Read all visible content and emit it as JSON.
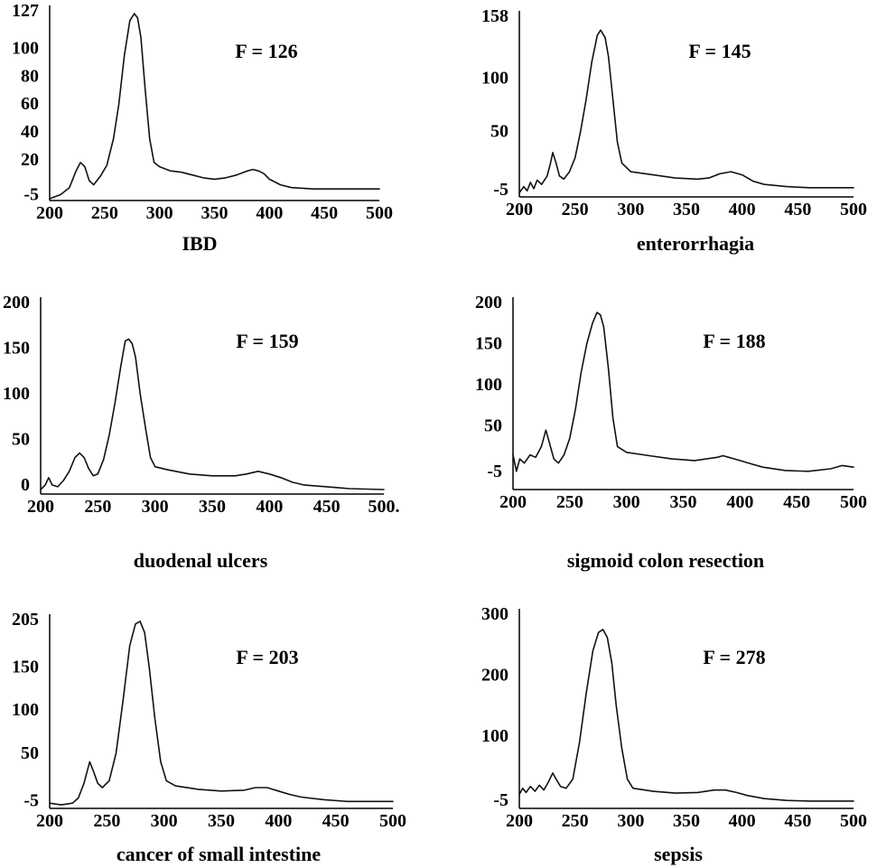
{
  "chart_data": [
    {
      "type": "line",
      "f_label": "F = 126",
      "caption": "IBD",
      "x_ticks": [
        "200",
        "250",
        "300",
        "350",
        "400",
        "450",
        "500"
      ],
      "y_ticks": [
        {
          "value": -5,
          "label": "-5"
        },
        {
          "value": 20,
          "label": "20"
        },
        {
          "value": 40,
          "label": "40"
        },
        {
          "value": 60,
          "label": "60"
        },
        {
          "value": 80,
          "label": "80"
        },
        {
          "value": 100,
          "label": "100"
        },
        {
          "value": 127,
          "label": "127"
        }
      ],
      "xlim": [
        200,
        500
      ],
      "ylim": [
        -8,
        127
      ],
      "series": [
        {
          "points": [
            [
              200,
              -8
            ],
            [
              210,
              -5
            ],
            [
              218,
              0
            ],
            [
              224,
              12
            ],
            [
              228,
              18
            ],
            [
              232,
              15
            ],
            [
              236,
              5
            ],
            [
              240,
              2
            ],
            [
              246,
              8
            ],
            [
              252,
              16
            ],
            [
              258,
              35
            ],
            [
              263,
              60
            ],
            [
              268,
              95
            ],
            [
              273,
              120
            ],
            [
              277,
              125
            ],
            [
              280,
              122
            ],
            [
              283,
              108
            ],
            [
              287,
              70
            ],
            [
              291,
              35
            ],
            [
              295,
              18
            ],
            [
              300,
              15
            ],
            [
              310,
              12
            ],
            [
              320,
              11
            ],
            [
              330,
              9
            ],
            [
              340,
              7
            ],
            [
              350,
              6
            ],
            [
              360,
              7
            ],
            [
              370,
              9
            ],
            [
              380,
              12
            ],
            [
              385,
              13
            ],
            [
              390,
              12
            ],
            [
              395,
              10
            ],
            [
              400,
              6
            ],
            [
              410,
              2
            ],
            [
              420,
              0
            ],
            [
              440,
              -1
            ],
            [
              460,
              -1
            ],
            [
              500,
              -1
            ]
          ]
        }
      ]
    },
    {
      "type": "line",
      "f_label": "F = 145",
      "caption": "enterorrhagia",
      "x_ticks": [
        "200",
        "250",
        "300",
        "350",
        "400",
        "450",
        "500"
      ],
      "y_ticks": [
        {
          "value": -5,
          "label": "-5"
        },
        {
          "value": 50,
          "label": "50"
        },
        {
          "value": 100,
          "label": "100"
        },
        {
          "value": 158,
          "label": "158"
        }
      ],
      "xlim": [
        200,
        500
      ],
      "ylim": [
        -10,
        158
      ],
      "series": [
        {
          "points": [
            [
              200,
              -8
            ],
            [
              204,
              -2
            ],
            [
              207,
              -6
            ],
            [
              210,
              2
            ],
            [
              213,
              -4
            ],
            [
              216,
              4
            ],
            [
              220,
              0
            ],
            [
              225,
              8
            ],
            [
              228,
              20
            ],
            [
              230,
              30
            ],
            [
              233,
              20
            ],
            [
              236,
              8
            ],
            [
              240,
              5
            ],
            [
              245,
              12
            ],
            [
              250,
              25
            ],
            [
              255,
              50
            ],
            [
              260,
              80
            ],
            [
              265,
              115
            ],
            [
              270,
              140
            ],
            [
              273,
              145
            ],
            [
              277,
              138
            ],
            [
              280,
              120
            ],
            [
              284,
              80
            ],
            [
              288,
              40
            ],
            [
              292,
              20
            ],
            [
              300,
              12
            ],
            [
              320,
              9
            ],
            [
              340,
              6
            ],
            [
              360,
              5
            ],
            [
              370,
              6
            ],
            [
              380,
              10
            ],
            [
              390,
              12
            ],
            [
              400,
              9
            ],
            [
              410,
              3
            ],
            [
              420,
              0
            ],
            [
              440,
              -2
            ],
            [
              460,
              -3
            ],
            [
              500,
              -3
            ]
          ]
        }
      ]
    },
    {
      "type": "line",
      "f_label": "F = 159",
      "caption": "duodenal ulcers",
      "x_ticks": [
        "200",
        "250",
        "300",
        "350",
        "400",
        "450",
        "500."
      ],
      "y_ticks": [
        {
          "value": 0,
          "label": "0"
        },
        {
          "value": 50,
          "label": "50"
        },
        {
          "value": 100,
          "label": "100"
        },
        {
          "value": 150,
          "label": "150"
        },
        {
          "value": 200,
          "label": "200"
        }
      ],
      "xlim": [
        200,
        500
      ],
      "ylim": [
        -8,
        200
      ],
      "series": [
        {
          "points": [
            [
              200,
              -5
            ],
            [
              204,
              0
            ],
            [
              207,
              8
            ],
            [
              210,
              0
            ],
            [
              215,
              -2
            ],
            [
              220,
              5
            ],
            [
              225,
              15
            ],
            [
              230,
              30
            ],
            [
              234,
              35
            ],
            [
              238,
              30
            ],
            [
              242,
              18
            ],
            [
              246,
              10
            ],
            [
              250,
              12
            ],
            [
              255,
              28
            ],
            [
              260,
              55
            ],
            [
              265,
              90
            ],
            [
              270,
              130
            ],
            [
              274,
              158
            ],
            [
              277,
              160
            ],
            [
              280,
              155
            ],
            [
              283,
              140
            ],
            [
              287,
              100
            ],
            [
              292,
              60
            ],
            [
              296,
              30
            ],
            [
              300,
              20
            ],
            [
              310,
              17
            ],
            [
              330,
              12
            ],
            [
              350,
              10
            ],
            [
              370,
              10
            ],
            [
              380,
              12
            ],
            [
              390,
              15
            ],
            [
              400,
              12
            ],
            [
              410,
              8
            ],
            [
              420,
              3
            ],
            [
              430,
              0
            ],
            [
              450,
              -2
            ],
            [
              470,
              -4
            ],
            [
              500,
              -5
            ]
          ]
        }
      ]
    },
    {
      "type": "line",
      "f_label": "F = 188",
      "caption": "sigmoid colon resection",
      "x_ticks": [
        "200",
        "250",
        "300",
        "350",
        "400",
        "450",
        "500"
      ],
      "y_ticks": [
        {
          "value": -5,
          "label": "-5"
        },
        {
          "value": 50,
          "label": "50"
        },
        {
          "value": 100,
          "label": "100"
        },
        {
          "value": 150,
          "label": "150"
        },
        {
          "value": 200,
          "label": "200"
        }
      ],
      "xlim": [
        200,
        500
      ],
      "ylim": [
        -25,
        200
      ],
      "series": [
        {
          "points": [
            [
              200,
              15
            ],
            [
              203,
              -5
            ],
            [
              206,
              10
            ],
            [
              210,
              5
            ],
            [
              215,
              15
            ],
            [
              220,
              12
            ],
            [
              225,
              25
            ],
            [
              229,
              45
            ],
            [
              232,
              30
            ],
            [
              236,
              10
            ],
            [
              240,
              5
            ],
            [
              245,
              15
            ],
            [
              250,
              35
            ],
            [
              255,
              70
            ],
            [
              260,
              115
            ],
            [
              265,
              150
            ],
            [
              270,
              175
            ],
            [
              274,
              188
            ],
            [
              277,
              185
            ],
            [
              280,
              170
            ],
            [
              284,
              120
            ],
            [
              288,
              60
            ],
            [
              292,
              25
            ],
            [
              300,
              18
            ],
            [
              320,
              14
            ],
            [
              340,
              10
            ],
            [
              360,
              8
            ],
            [
              380,
              12
            ],
            [
              385,
              14
            ],
            [
              390,
              12
            ],
            [
              400,
              8
            ],
            [
              410,
              4
            ],
            [
              420,
              0
            ],
            [
              440,
              -4
            ],
            [
              460,
              -5
            ],
            [
              480,
              -2
            ],
            [
              490,
              2
            ],
            [
              500,
              0
            ]
          ]
        }
      ]
    },
    {
      "type": "line",
      "f_label": "F = 203",
      "caption": "cancer of small intestine",
      "x_ticks": [
        "200",
        "250",
        "300",
        "350",
        "400",
        "450",
        "500"
      ],
      "y_ticks": [
        {
          "value": -5,
          "label": "-5"
        },
        {
          "value": 50,
          "label": "50"
        },
        {
          "value": 100,
          "label": "100"
        },
        {
          "value": 150,
          "label": "150"
        },
        {
          "value": 205,
          "label": "205"
        }
      ],
      "xlim": [
        200,
        500
      ],
      "ylim": [
        -12,
        205
      ],
      "series": [
        {
          "points": [
            [
              200,
              -8
            ],
            [
              210,
              -10
            ],
            [
              220,
              -8
            ],
            [
              225,
              -2
            ],
            [
              230,
              15
            ],
            [
              235,
              40
            ],
            [
              238,
              30
            ],
            [
              242,
              15
            ],
            [
              246,
              10
            ],
            [
              252,
              18
            ],
            [
              258,
              50
            ],
            [
              264,
              110
            ],
            [
              270,
              175
            ],
            [
              275,
              200
            ],
            [
              279,
              203
            ],
            [
              283,
              190
            ],
            [
              287,
              150
            ],
            [
              292,
              90
            ],
            [
              297,
              40
            ],
            [
              302,
              18
            ],
            [
              310,
              12
            ],
            [
              330,
              8
            ],
            [
              350,
              6
            ],
            [
              370,
              7
            ],
            [
              380,
              10
            ],
            [
              390,
              10
            ],
            [
              400,
              6
            ],
            [
              410,
              2
            ],
            [
              420,
              -1
            ],
            [
              440,
              -4
            ],
            [
              460,
              -6
            ],
            [
              500,
              -6
            ]
          ]
        }
      ]
    },
    {
      "type": "line",
      "f_label": "F = 278",
      "caption": "sepsis",
      "x_ticks": [
        "200",
        "250",
        "300",
        "350",
        "400",
        "450",
        "500"
      ],
      "y_ticks": [
        {
          "value": -5,
          "label": "-5"
        },
        {
          "value": 100,
          "label": "100"
        },
        {
          "value": 200,
          "label": "200"
        },
        {
          "value": 300,
          "label": "300"
        }
      ],
      "xlim": [
        200,
        500
      ],
      "ylim": [
        -15,
        300
      ],
      "series": [
        {
          "points": [
            [
              200,
              5
            ],
            [
              203,
              15
            ],
            [
              206,
              8
            ],
            [
              210,
              18
            ],
            [
              214,
              10
            ],
            [
              218,
              20
            ],
            [
              222,
              12
            ],
            [
              226,
              25
            ],
            [
              230,
              40
            ],
            [
              233,
              30
            ],
            [
              237,
              18
            ],
            [
              242,
              15
            ],
            [
              248,
              30
            ],
            [
              254,
              90
            ],
            [
              260,
              170
            ],
            [
              266,
              240
            ],
            [
              271,
              270
            ],
            [
              275,
              275
            ],
            [
              279,
              262
            ],
            [
              283,
              220
            ],
            [
              287,
              150
            ],
            [
              292,
              80
            ],
            [
              297,
              30
            ],
            [
              302,
              15
            ],
            [
              320,
              10
            ],
            [
              340,
              7
            ],
            [
              360,
              8
            ],
            [
              375,
              12
            ],
            [
              385,
              12
            ],
            [
              395,
              8
            ],
            [
              405,
              3
            ],
            [
              420,
              -2
            ],
            [
              440,
              -5
            ],
            [
              460,
              -6
            ],
            [
              500,
              -6
            ]
          ]
        }
      ]
    }
  ]
}
